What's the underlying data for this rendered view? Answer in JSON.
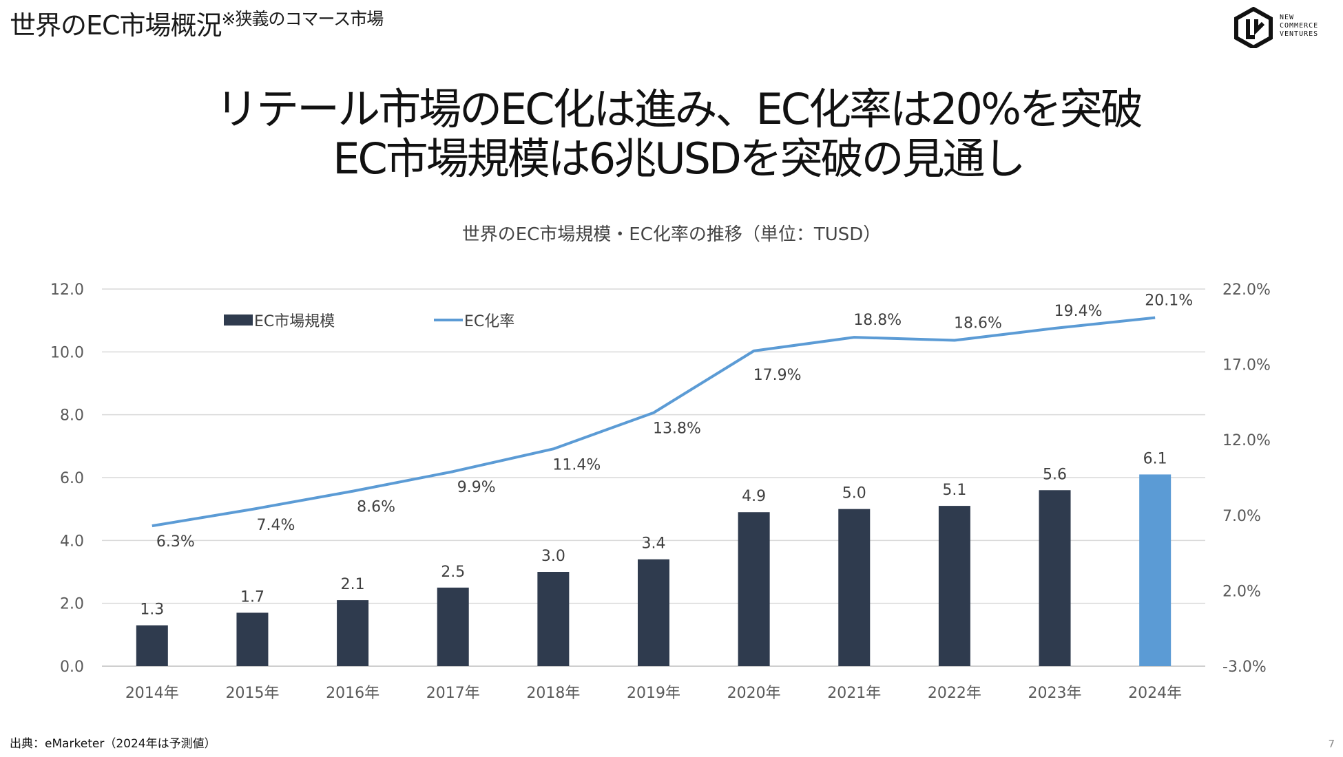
{
  "header": {
    "title": "世界のEC市場概況",
    "title_note": "※狭義のコマース市場",
    "logo_lines": [
      "NEW",
      "COMMERCE",
      "VENTURES"
    ]
  },
  "headline": {
    "line1": "リテール市場のEC化は進み、EC化率は20%を突破",
    "line2": "EC市場規模は6兆USDを突破の見通し"
  },
  "chart_data": {
    "type": "bar",
    "title": "世界のEC市場規模・EC化率の推移（単位：TUSD）",
    "categories": [
      "2014年",
      "2015年",
      "2016年",
      "2017年",
      "2018年",
      "2019年",
      "2020年",
      "2021年",
      "2022年",
      "2023年",
      "2024年"
    ],
    "series": [
      {
        "name": "EC市場規模",
        "type": "bar",
        "axis": "left",
        "values": [
          1.3,
          1.7,
          2.1,
          2.5,
          3.0,
          3.4,
          4.9,
          5.0,
          5.1,
          5.6,
          6.1
        ],
        "labels": [
          "1.3",
          "1.7",
          "2.1",
          "2.5",
          "3.0",
          "3.4",
          "4.9",
          "5.0",
          "5.1",
          "5.6",
          "6.1"
        ],
        "color": "#2f3b4e",
        "highlight_color": "#5b9bd5",
        "highlight_index": 10
      },
      {
        "name": "EC化率",
        "type": "line",
        "axis": "right",
        "values": [
          6.3,
          7.4,
          8.6,
          9.9,
          11.4,
          13.8,
          17.9,
          18.8,
          18.6,
          19.4,
          20.1
        ],
        "labels": [
          "6.3%",
          "7.4%",
          "8.6%",
          "9.9%",
          "11.4%",
          "13.8%",
          "17.9%",
          "18.8%",
          "18.6%",
          "19.4%",
          "20.1%"
        ],
        "color": "#5b9bd5"
      }
    ],
    "y_left": {
      "ylim": [
        0,
        12
      ],
      "ticks": [
        0,
        2,
        4,
        6,
        8,
        10,
        12
      ],
      "tick_labels": [
        "0.0",
        "2.0",
        "4.0",
        "6.0",
        "8.0",
        "10.0",
        "12.0"
      ]
    },
    "y_right": {
      "ylim": [
        -3,
        22
      ],
      "ticks": [
        -3,
        2,
        7,
        12,
        17,
        22
      ],
      "tick_labels": [
        "-3.0%",
        "2.0%",
        "7.0%",
        "12.0%",
        "17.0%",
        "22.0%"
      ]
    },
    "grid": true,
    "legend": "top-left"
  },
  "footer": {
    "source": "出典：eMarketer（2024年は予測値）",
    "page_number": "7"
  }
}
